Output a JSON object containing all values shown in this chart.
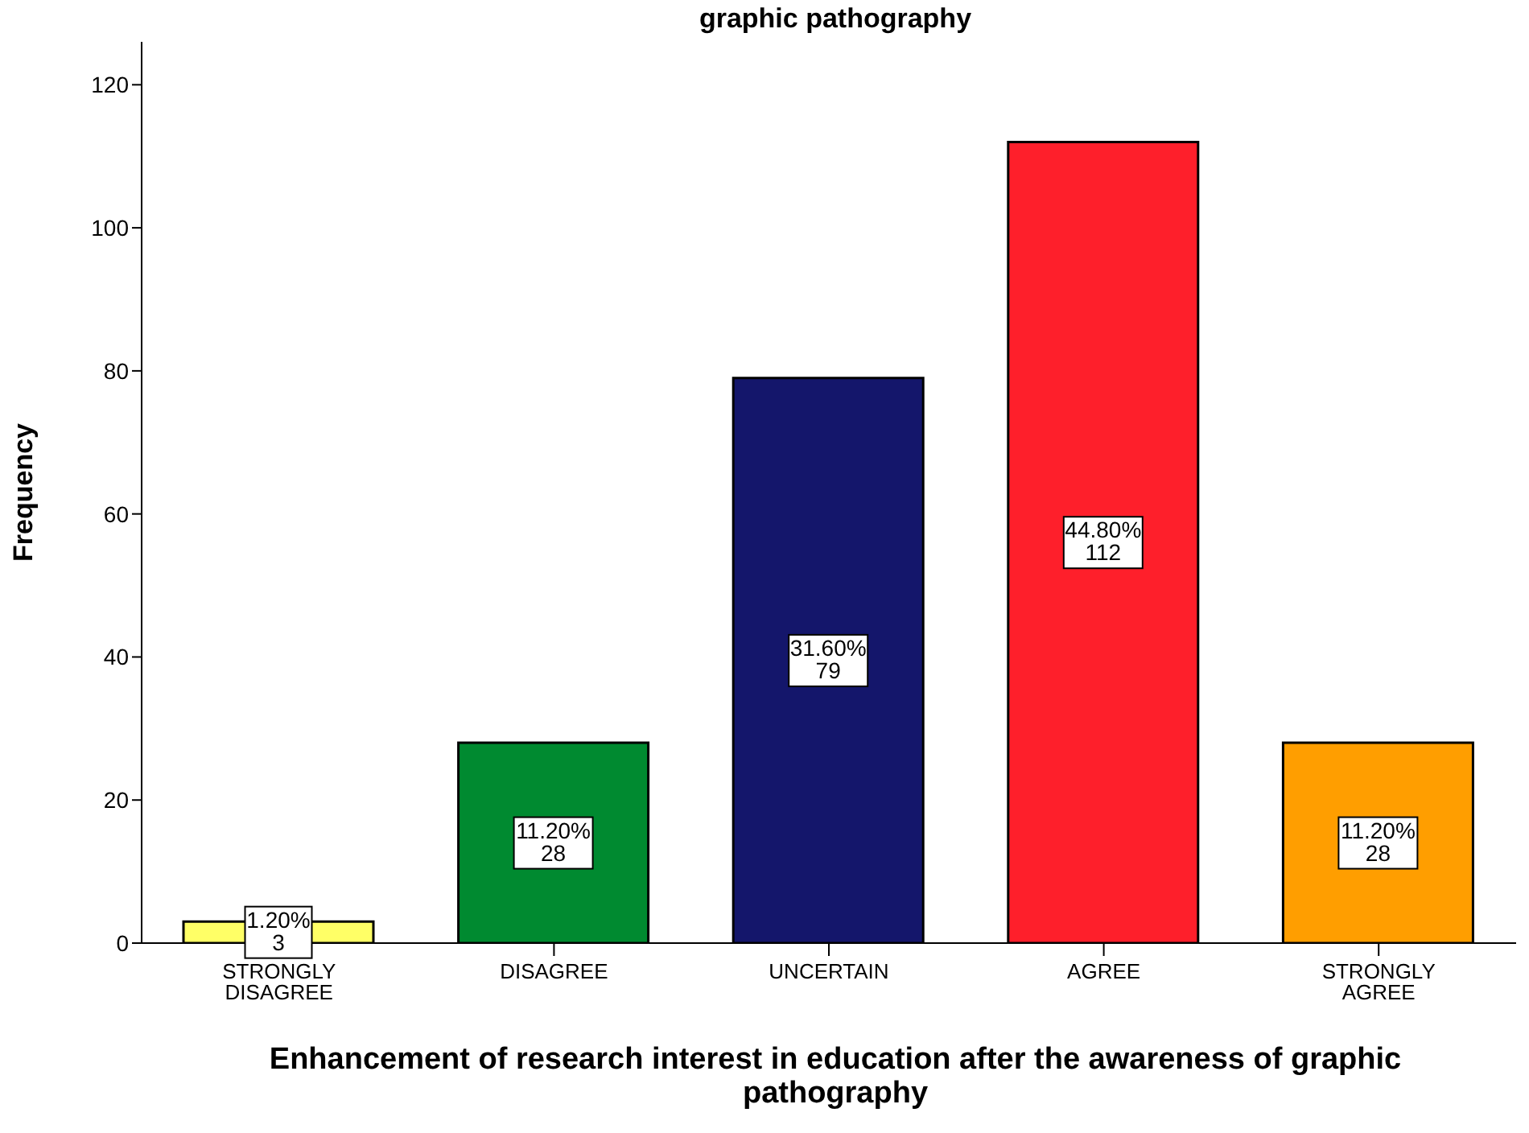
{
  "chart_data": {
    "type": "bar",
    "title": "graphic pathography",
    "xlabel": "Enhancement of research interest in education after the awareness of graphic pathography",
    "ylabel": "Frequency",
    "categories": [
      "STRONGLY DISAGREE",
      "DISAGREE",
      "UNCERTAIN",
      "AGREE",
      "STRONGLY AGREE"
    ],
    "values": [
      3,
      28,
      79,
      112,
      28
    ],
    "colors": [
      "#ffff66",
      "#008a30",
      "#14166b",
      "#fe1f2b",
      "#ff9e00"
    ],
    "value_labels": [
      "1.20%\n3",
      "11.20%\n28",
      "31.60%\n79",
      "44.80%\n112",
      "11.20%\n28"
    ],
    "ylim": [
      0,
      126
    ],
    "yticks": [
      0,
      20,
      40,
      60,
      80,
      100,
      120
    ],
    "grid": false,
    "legend": false
  }
}
